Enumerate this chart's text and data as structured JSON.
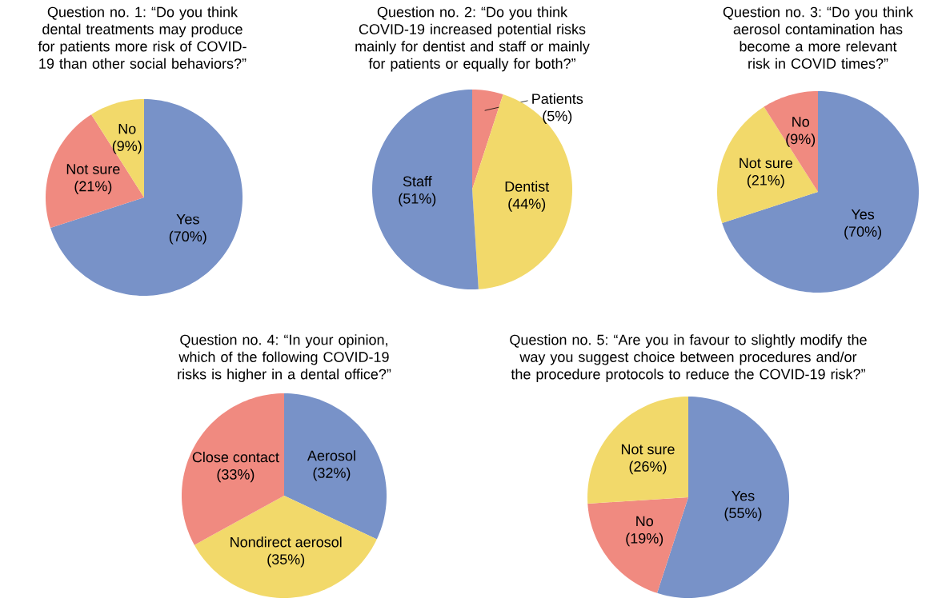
{
  "chart_data": [
    {
      "type": "pie",
      "title": "Question no. 1: “Do you think dental treatments may produce for patients more risk of COVID-19 than other social behaviors?”",
      "categories": [
        "Yes",
        "Not sure",
        "No"
      ],
      "values": [
        70,
        21,
        9
      ],
      "colors": [
        "#7892c8",
        "#f08a80",
        "#f2d96a"
      ],
      "value_labels": [
        "(70%)",
        "(21%)",
        "(9%)"
      ]
    },
    {
      "type": "pie",
      "title": "Question no. 2: “Do you think COVID-19 increased potential risks mainly for dentist and staff or mainly for patients or equally for both?”",
      "categories": [
        "Patients",
        "Dentist",
        "Staff"
      ],
      "values": [
        5,
        44,
        51
      ],
      "colors": [
        "#f08a80",
        "#f2d96a",
        "#7892c8"
      ],
      "value_labels": [
        "(5%)",
        "(44%)",
        "(51%)"
      ]
    },
    {
      "type": "pie",
      "title": "Question no. 3: “Do you think aerosol contamination has become a more relevant risk in COVID times?”",
      "categories": [
        "Yes",
        "Not sure",
        "No"
      ],
      "values": [
        70,
        21,
        9
      ],
      "colors": [
        "#7892c8",
        "#f2d96a",
        "#f08a80"
      ],
      "value_labels": [
        "(70%)",
        "(21%)",
        "(9%)"
      ]
    },
    {
      "type": "pie",
      "title": "Question no. 4: “In your opinion, which of the following COVID-19 risks is higher in a dental office?”",
      "categories": [
        "Aerosol",
        "Nondirect aerosol",
        "Close contact"
      ],
      "values": [
        32,
        35,
        33
      ],
      "colors": [
        "#7892c8",
        "#f2d96a",
        "#f08a80"
      ],
      "value_labels": [
        "(32%)",
        "(35%)",
        "(33%)"
      ]
    },
    {
      "type": "pie",
      "title": "Question no. 5: “Are you in favour to slightly modify the way you suggest choice between procedures and/or the procedure protocols to reduce the COVID-19 risk?”",
      "categories": [
        "Yes",
        "No",
        "Not sure"
      ],
      "values": [
        55,
        19,
        26
      ],
      "colors": [
        "#7892c8",
        "#f08a80",
        "#f2d96a"
      ],
      "value_labels": [
        "(55%)",
        "(19%)",
        "(26%)"
      ]
    }
  ]
}
